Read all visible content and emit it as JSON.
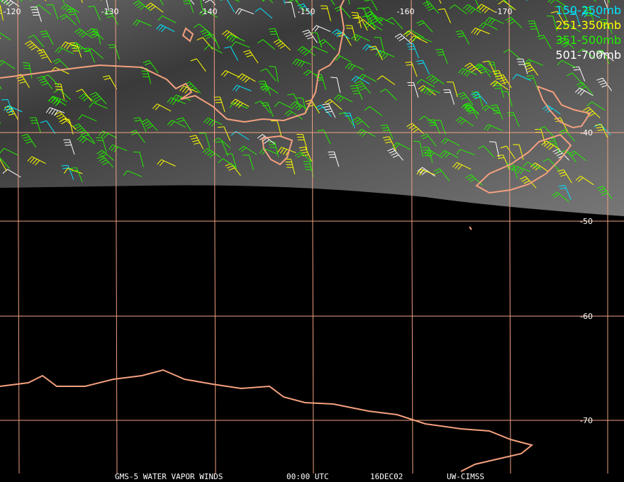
{
  "map": {
    "longitude_labels": [
      "-120",
      "-130",
      "-140",
      "-150",
      "-160",
      "-170"
    ],
    "latitude_labels": [
      "-40",
      "-50",
      "-60",
      "-70"
    ],
    "legend": [
      {
        "label": "150-250mb",
        "color": "#00e5ff"
      },
      {
        "label": "251-350mb",
        "color": "#ffff00"
      },
      {
        "label": "351-500mb",
        "color": "#22ee00"
      },
      {
        "label": "501-700mb",
        "color": "#ffffff"
      }
    ],
    "footer": [
      "GMS-5 WATER VAPOR WINDS",
      "00:00 UTC",
      "16DEC02",
      "UW-CIMSS"
    ]
  }
}
